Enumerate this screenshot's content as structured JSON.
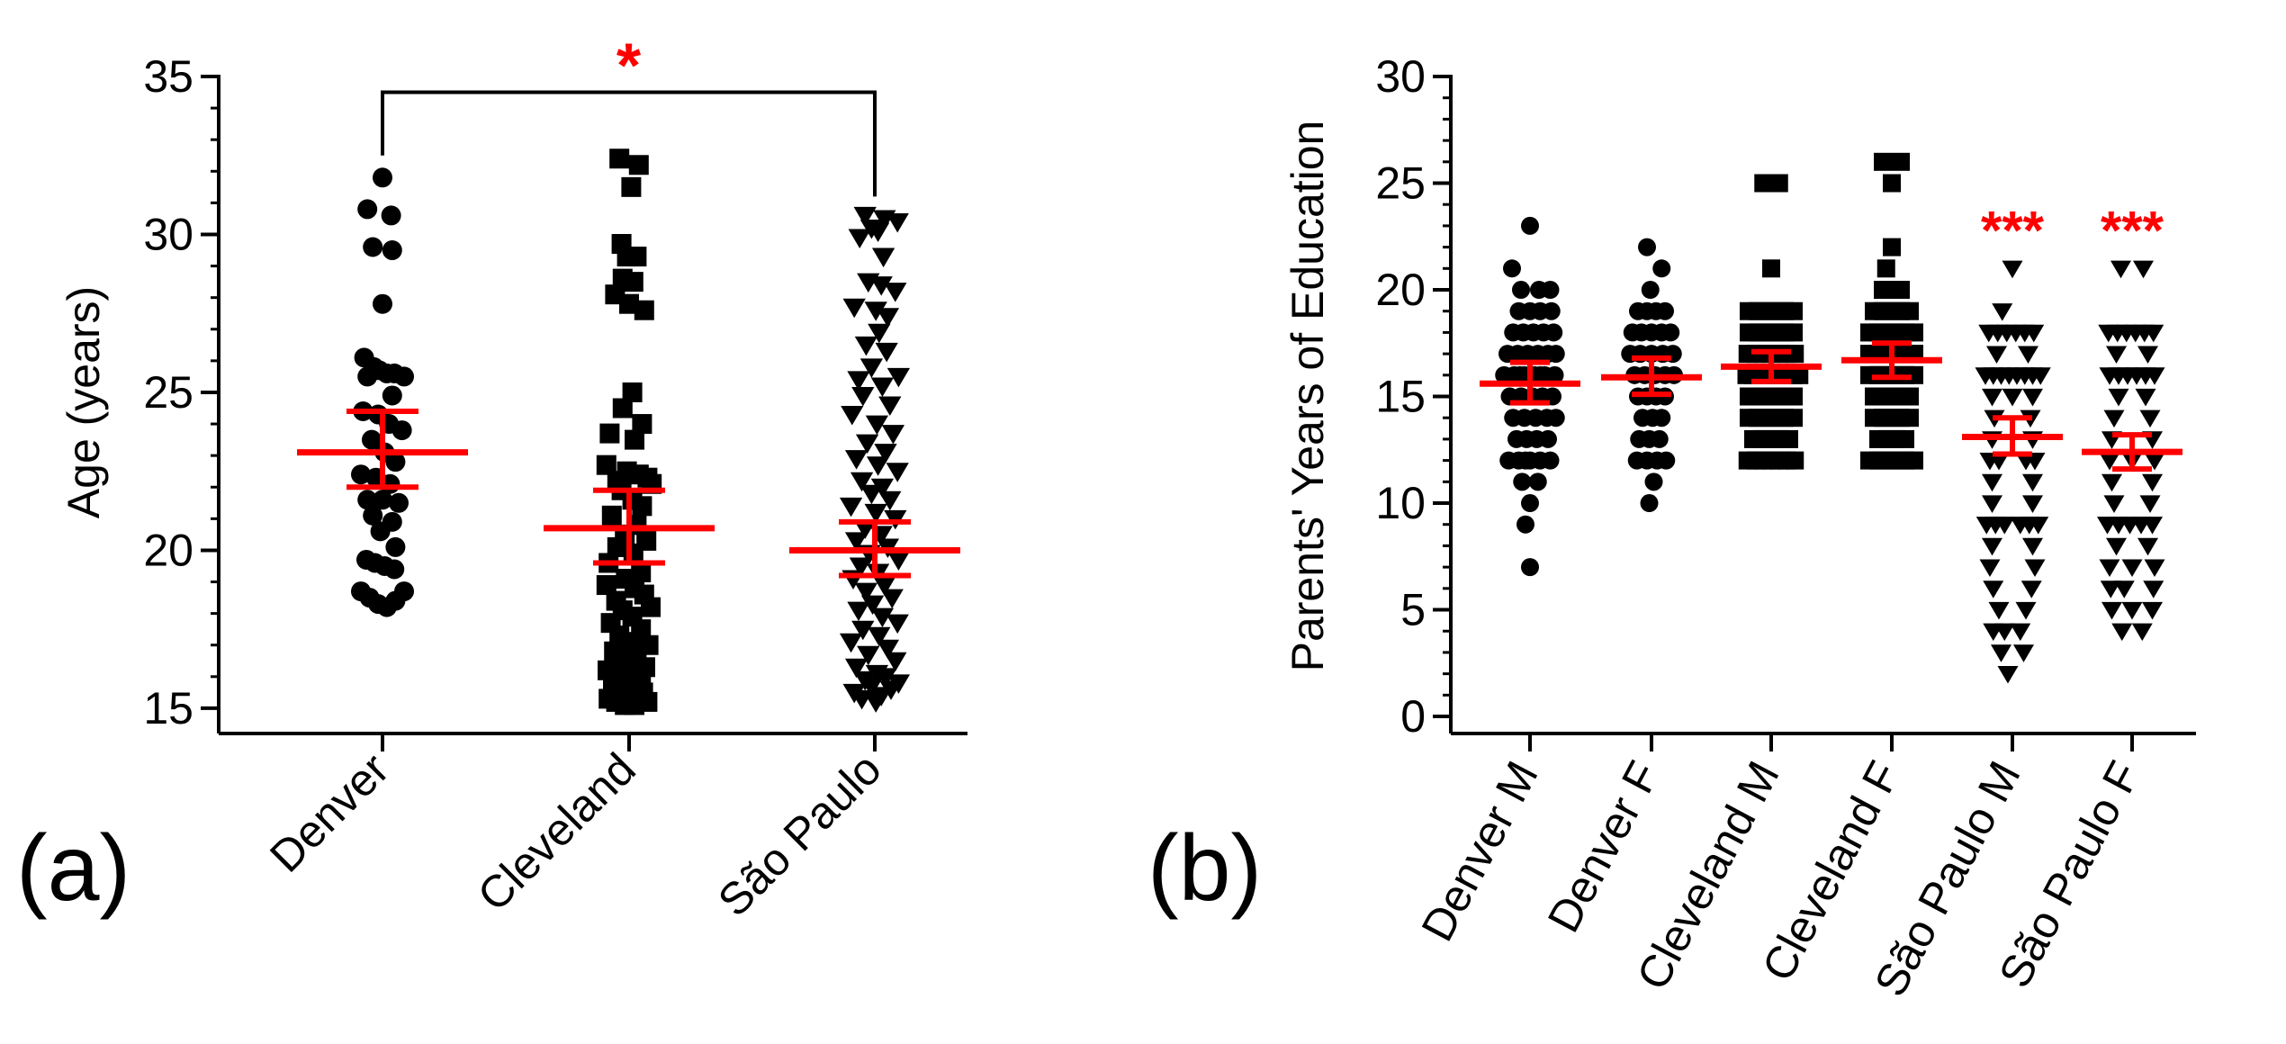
{
  "colors": {
    "points": "#000000",
    "summary": "#ff0000",
    "axis": "#000000",
    "significance": "#ff0000"
  },
  "chart_data": [
    {
      "type": "scatter",
      "panel_label": "(a)",
      "ylabel": "Age (years)",
      "ylim": [
        14.2,
        35
      ],
      "yticks": [
        15,
        20,
        25,
        30,
        35
      ],
      "minor_step": 1,
      "categories": [
        "Denver",
        "Cleveland",
        "São Paulo"
      ],
      "series": [
        {
          "name": "Denver",
          "marker": "circle",
          "mean": 23.1,
          "sem_low": 22.0,
          "sem_high": 24.4,
          "values": [
            31.8,
            30.8,
            30.6,
            29.6,
            29.5,
            27.8,
            26.1,
            25.8,
            25.7,
            25.6,
            25.6,
            25.5,
            25.5,
            24.9,
            24.4,
            24.3,
            24.0,
            23.8,
            23.5,
            23.1,
            22.8,
            22.4,
            22.3,
            22.1,
            21.6,
            21.6,
            21.5,
            21.1,
            20.9,
            20.6,
            20.1,
            19.7,
            19.6,
            19.5,
            19.4,
            18.7,
            18.7,
            18.5,
            18.4,
            18.3,
            18.2
          ],
          "offsets": [
            0,
            -0.7,
            0.4,
            -0.45,
            0.45,
            0,
            -0.85,
            -0.4,
            -0.15,
            0.2,
            0.55,
            -0.7,
            1.0,
            0.45,
            -0.9,
            -0.2,
            0.3,
            0.9,
            -0.5,
            0.1,
            0.6,
            -1.0,
            -0.3,
            0.35,
            -0.7,
            0,
            0.75,
            -0.45,
            0.45,
            -0.1,
            0.6,
            -0.75,
            -0.35,
            0.1,
            0.55,
            -1.0,
            1.0,
            -0.6,
            0.6,
            -0.2,
            0.2
          ]
        },
        {
          "name": "Cleveland",
          "marker": "square",
          "mean": 20.7,
          "sem_low": 19.6,
          "sem_high": 21.9,
          "values": [
            32.4,
            32.2,
            31.5,
            29.7,
            29.3,
            29.3,
            28.6,
            28.5,
            28.1,
            27.8,
            27.6,
            25.0,
            24.5,
            24.0,
            23.7,
            23.5,
            22.7,
            22.5,
            22.4,
            22.3,
            22.2,
            22.1,
            21.9,
            21.6,
            21.4,
            21.1,
            20.8,
            20.5,
            20.3,
            20.1,
            19.9,
            19.6,
            19.3,
            19.1,
            18.9,
            18.8,
            18.6,
            18.4,
            18.2,
            18.1,
            17.9,
            17.7,
            17.5,
            17.3,
            17.1,
            17.0,
            16.8,
            16.6,
            16.5,
            16.3,
            16.2,
            16.1,
            16.0,
            15.9,
            15.8,
            15.7,
            15.6,
            15.5,
            15.4,
            15.4,
            15.3,
            15.3,
            15.2,
            15.2,
            15.1,
            15.1
          ],
          "offsets": [
            -0.45,
            0.45,
            0.1,
            -0.35,
            -0.1,
            0.35,
            -0.3,
            0.2,
            -0.65,
            0.0,
            0.7,
            0.15,
            -0.3,
            0.6,
            -0.9,
            0.25,
            -1.05,
            -0.1,
            0.45,
            0.85,
            -0.55,
            1.05,
            -0.35,
            0.15,
            0.6,
            -0.8,
            0.35,
            -0.2,
            0.8,
            -0.55,
            0.2,
            -0.95,
            0.55,
            -0.15,
            -1.05,
            0.25,
            0.7,
            -0.6,
            1.0,
            -0.3,
            0.15,
            -0.85,
            0.55,
            -0.45,
            0.05,
            0.9,
            -0.7,
            0.35,
            -0.25,
            0.75,
            -1.0,
            0.15,
            -0.5,
            0.55,
            -0.15,
            0.25,
            -0.75,
            0.65,
            -0.35,
            0.05,
            -0.95,
            0.45,
            -0.6,
            0.85,
            -0.2,
            0.25
          ]
        },
        {
          "name": "São Paulo",
          "marker": "triangle-down",
          "mean": 20.0,
          "sem_low": 19.2,
          "sem_high": 20.9,
          "values": [
            30.6,
            30.5,
            30.4,
            30.2,
            30.1,
            29.9,
            29.3,
            28.5,
            28.4,
            28.2,
            27.7,
            27.6,
            27.4,
            26.9,
            26.5,
            26.3,
            25.8,
            25.5,
            25.4,
            25.2,
            24.9,
            24.6,
            24.3,
            24.0,
            23.7,
            23.4,
            23.1,
            22.9,
            22.7,
            22.5,
            22.2,
            22.0,
            21.8,
            21.6,
            21.4,
            21.2,
            21.0,
            20.7,
            20.5,
            20.3,
            20.1,
            19.9,
            19.7,
            19.5,
            19.3,
            19.1,
            18.9,
            18.7,
            18.5,
            18.3,
            18.1,
            17.9,
            17.7,
            17.5,
            17.3,
            17.1,
            16.9,
            16.7,
            16.5,
            16.3,
            16.1,
            16.0,
            15.9,
            15.8,
            15.7,
            15.6,
            15.5,
            15.4,
            15.3,
            15.2
          ],
          "offsets": [
            -0.45,
            0.45,
            1.05,
            -0.15,
            0.15,
            -0.7,
            0.4,
            -0.3,
            0.3,
            0.95,
            -0.95,
            0.05,
            0.6,
            0.2,
            -0.4,
            0.55,
            -0.15,
            1.1,
            -0.75,
            0.35,
            -0.55,
            0.7,
            -1.05,
            0.1,
            0.85,
            -0.35,
            0.5,
            -0.85,
            0.15,
            1.05,
            -0.6,
            0.35,
            -0.15,
            0.7,
            -1.1,
            0.05,
            0.95,
            -0.45,
            0.3,
            -0.85,
            0.6,
            -0.25,
            1.1,
            -0.65,
            0.15,
            -1.0,
            0.45,
            -0.4,
            0.8,
            -0.1,
            -0.75,
            0.35,
            1.05,
            -0.55,
            0.2,
            -1.1,
            0.6,
            -0.3,
            0.95,
            -0.85,
            0.1,
            0.5,
            -0.45,
            1.1,
            -0.15,
            0.75,
            -0.95,
            0.3,
            -0.6,
            0.05
          ]
        }
      ],
      "significance": {
        "label": "*",
        "from": "Denver",
        "to": "São Paulo",
        "bar_y": 34.5,
        "left_drop": 32.5,
        "right_drop": 31.2
      }
    },
    {
      "type": "scatter",
      "panel_label": "(b)",
      "ylabel": "Parents' Years of Education",
      "ylim": [
        -0.8,
        30
      ],
      "yticks": [
        0,
        5,
        10,
        15,
        20,
        25,
        30
      ],
      "minor_step": 1,
      "categories": [
        "Denver M",
        "Denver F",
        "Cleveland M",
        "Cleveland F",
        "São Paulo M",
        "São Paulo F"
      ],
      "series": [
        {
          "name": "Denver M",
          "marker": "circle",
          "mean": 15.6,
          "sem_low": 14.7,
          "sem_high": 16.6,
          "significance": "",
          "values": [
            23,
            21,
            20,
            20,
            20,
            19,
            19,
            19,
            19,
            18,
            18,
            18,
            18,
            18,
            17,
            17,
            17,
            17,
            17,
            17,
            16,
            16,
            16,
            16,
            16,
            16,
            16,
            16,
            15,
            15,
            15,
            15,
            15,
            14,
            14,
            14,
            14,
            14,
            13,
            13,
            13,
            13,
            12,
            12,
            12,
            12,
            12,
            12,
            11,
            11,
            10,
            9,
            7
          ],
          "offsets": [
            0,
            -0.8,
            -0.4,
            0.4,
            0.9,
            -0.5,
            0,
            0.45,
            0.95,
            -0.75,
            -0.3,
            0.15,
            0.6,
            1.05,
            -1.0,
            -0.55,
            -0.1,
            0.35,
            0.8,
            1.15,
            -1.15,
            -0.7,
            -0.25,
            0.2,
            0.65,
            1.1,
            -0.45,
            0.45,
            -0.9,
            -0.4,
            0.1,
            0.55,
            1.0,
            -0.75,
            -0.25,
            0.25,
            0.75,
            1.15,
            -0.6,
            -0.15,
            0.3,
            0.8,
            -0.95,
            -0.5,
            0,
            0.45,
            0.9,
            -0.2,
            -0.35,
            0.35,
            0,
            -0.2,
            0
          ]
        },
        {
          "name": "Denver F",
          "marker": "circle",
          "mean": 15.9,
          "sem_low": 15.1,
          "sem_high": 16.8,
          "significance": "",
          "values": [
            22,
            21,
            20,
            19,
            19,
            19,
            19,
            18,
            18,
            18,
            18,
            18,
            17,
            17,
            17,
            17,
            17,
            16,
            16,
            16,
            16,
            16,
            15,
            15,
            15,
            15,
            14,
            14,
            14,
            13,
            13,
            13,
            12,
            12,
            12,
            12,
            11,
            10
          ],
          "offsets": [
            -0.2,
            0.45,
            -0.05,
            -0.6,
            -0.2,
            0.2,
            0.6,
            -0.85,
            -0.45,
            0,
            0.45,
            0.85,
            -0.95,
            -0.5,
            0,
            0.5,
            0.95,
            -0.75,
            -0.3,
            0.15,
            0.6,
            1.0,
            -0.6,
            -0.2,
            0.2,
            0.6,
            -0.4,
            0.05,
            0.45,
            -0.55,
            -0.1,
            0.35,
            -0.65,
            -0.2,
            0.25,
            0.65,
            0.1,
            -0.1
          ]
        },
        {
          "name": "Cleveland M",
          "marker": "square",
          "mean": 16.4,
          "sem_low": 15.7,
          "sem_high": 17.1,
          "significance": "",
          "values": [
            25,
            25,
            21,
            19,
            19,
            19,
            19,
            19,
            19,
            18,
            18,
            18,
            18,
            18,
            18,
            17,
            17,
            17,
            17,
            17,
            17,
            17,
            16,
            16,
            16,
            16,
            16,
            16,
            16,
            16,
            16,
            15,
            15,
            15,
            15,
            15,
            15,
            14,
            14,
            14,
            14,
            14,
            14,
            13,
            13,
            13,
            13,
            13,
            12,
            12,
            12,
            12,
            12,
            12,
            12
          ],
          "offsets": [
            -0.35,
            0.35,
            0,
            -1.0,
            -0.6,
            -0.2,
            0.2,
            0.6,
            1.0,
            -1.0,
            -0.6,
            -0.2,
            0.2,
            0.6,
            1.0,
            -1.05,
            -0.7,
            -0.35,
            0,
            0.35,
            0.7,
            1.05,
            -1.1,
            -0.8,
            -0.5,
            -0.2,
            0.1,
            0.4,
            0.7,
            1.0,
            1.25,
            -1.0,
            -0.6,
            -0.2,
            0.2,
            0.6,
            1.0,
            -1.0,
            -0.6,
            -0.2,
            0.2,
            0.6,
            1.0,
            -0.8,
            -0.4,
            0,
            0.4,
            0.8,
            -1.05,
            -0.7,
            -0.35,
            0,
            0.35,
            0.7,
            1.05
          ]
        },
        {
          "name": "Cleveland F",
          "marker": "square",
          "mean": 16.7,
          "sem_low": 15.9,
          "sem_high": 17.5,
          "significance": "",
          "values": [
            26,
            26,
            25,
            22,
            21,
            20,
            20,
            19,
            19,
            19,
            19,
            19,
            18,
            18,
            18,
            18,
            18,
            18,
            17,
            17,
            17,
            17,
            17,
            17,
            16,
            16,
            16,
            16,
            16,
            16,
            15,
            15,
            15,
            15,
            15,
            14,
            14,
            14,
            14,
            14,
            13,
            13,
            13,
            13,
            12,
            12,
            12,
            12,
            12,
            12
          ],
          "offsets": [
            -0.4,
            0.4,
            0,
            0,
            -0.25,
            -0.4,
            0.4,
            -0.8,
            -0.4,
            0,
            0.4,
            0.8,
            -1.0,
            -0.6,
            -0.2,
            0.2,
            0.6,
            1.0,
            -1.0,
            -0.6,
            -0.2,
            0.2,
            0.6,
            1.0,
            -1.0,
            -0.6,
            -0.2,
            0.2,
            0.6,
            1.0,
            -0.8,
            -0.4,
            0,
            0.4,
            0.8,
            -0.8,
            -0.4,
            0,
            0.4,
            0.8,
            -0.6,
            -0.2,
            0.2,
            0.6,
            -1.0,
            -0.6,
            -0.2,
            0.2,
            0.6,
            1.0
          ]
        },
        {
          "name": "São Paulo M",
          "marker": "triangle-down",
          "mean": 13.1,
          "sem_low": 12.3,
          "sem_high": 14.0,
          "significance": "***",
          "values": [
            21,
            19,
            18,
            18,
            18,
            18,
            18,
            18,
            17,
            17,
            16,
            16,
            16,
            16,
            16,
            16,
            16,
            16,
            15,
            15,
            15,
            14,
            14,
            13,
            13,
            12,
            12,
            12,
            12,
            11,
            11,
            10,
            10,
            9,
            9,
            9,
            9,
            9,
            9,
            8,
            8,
            7,
            7,
            6,
            6,
            5,
            5,
            4,
            4,
            4,
            3,
            3,
            2
          ],
          "offsets": [
            0,
            -0.45,
            -1.05,
            -0.65,
            -0.25,
            0.15,
            0.55,
            0.95,
            -0.7,
            0.7,
            -1.2,
            -0.85,
            -0.5,
            -0.15,
            0.2,
            0.55,
            0.9,
            1.25,
            -0.9,
            0,
            0.9,
            -0.8,
            0.8,
            -0.9,
            0.9,
            -1.0,
            -0.6,
            0.6,
            1.0,
            -0.9,
            0.9,
            -0.9,
            0.9,
            -1.15,
            -0.75,
            -0.35,
            0.35,
            0.75,
            1.15,
            -0.9,
            0.9,
            -1.0,
            1.0,
            -0.85,
            0.85,
            -0.6,
            0.6,
            -0.85,
            -0.35,
            0.35,
            -0.5,
            0.5,
            -0.2
          ]
        },
        {
          "name": "São Paulo F",
          "marker": "triangle-down",
          "mean": 12.4,
          "sem_low": 11.6,
          "sem_high": 13.2,
          "significance": "***",
          "values": [
            21,
            21,
            18,
            18,
            18,
            18,
            18,
            18,
            17,
            17,
            16,
            16,
            16,
            16,
            16,
            16,
            15,
            15,
            14,
            14,
            13,
            13,
            12,
            12,
            12,
            11,
            11,
            10,
            10,
            9,
            9,
            9,
            9,
            9,
            8,
            8,
            7,
            7,
            7,
            6,
            6,
            6,
            5,
            5,
            5,
            4,
            4
          ],
          "offsets": [
            -0.5,
            0.5,
            -1.05,
            -0.65,
            -0.25,
            0.15,
            0.55,
            0.95,
            -0.7,
            0.7,
            -1.0,
            -0.6,
            -0.2,
            0.2,
            0.6,
            1.0,
            -0.6,
            0.6,
            -0.8,
            0.8,
            -0.9,
            0.9,
            -1.0,
            0,
            1.0,
            -0.9,
            0.9,
            -0.8,
            0.8,
            -1.1,
            -0.6,
            -0.1,
            0.4,
            0.9,
            -0.7,
            0.7,
            -1.0,
            0,
            1.0,
            -0.95,
            -0.35,
            0.95,
            -0.9,
            0,
            0.9,
            -0.45,
            0.45
          ]
        }
      ]
    }
  ]
}
